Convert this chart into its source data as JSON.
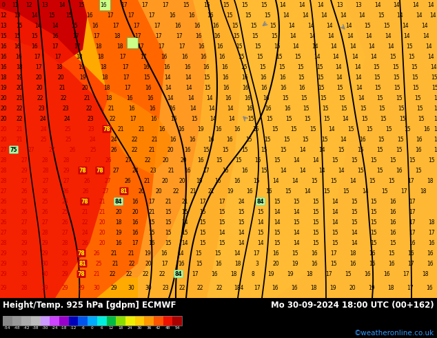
{
  "title_left": "Height/Temp. 925 hPa [gdpm] ECMWF",
  "title_right": "Mo 30-09-2024 18:00 UTC (00+162)",
  "credit": "©weatheronline.co.uk",
  "colorbar_colors": [
    "#888888",
    "#999999",
    "#aaaaaa",
    "#bbbbbb",
    "#cc99ff",
    "#cc44ff",
    "#9900cc",
    "#0000bb",
    "#0055ee",
    "#00aaff",
    "#00eedd",
    "#00bb44",
    "#88dd00",
    "#eeee00",
    "#ffcc00",
    "#ff9900",
    "#ff5500",
    "#ee1100",
    "#aa0000"
  ],
  "colorbar_labels": [
    "-54",
    "-48",
    "-42",
    "-38",
    "-30",
    "-24",
    "-18",
    "-12",
    "-6",
    "0",
    "6",
    "12",
    "18",
    "24",
    "30",
    "36",
    "42",
    "48",
    "54"
  ],
  "fig_bg": "#000000",
  "map_base_color": "#ffaa00",
  "bottom_bar_color": "#000000",
  "title_color": "#ffffff",
  "credit_color": "#3399ff",
  "contour_color": "#000000",
  "numbers_color": "#000000",
  "red_numbers_color": "#cc0000"
}
